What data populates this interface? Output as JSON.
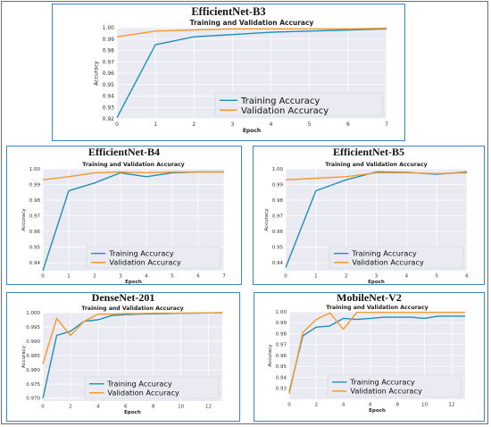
{
  "colors": {
    "training": "#1f8fb4",
    "validation": "#f59a2c",
    "panel_border": "#3b86c6",
    "plot_bg": "#eaeaf2",
    "grid": "#ffffff"
  },
  "panels": [
    {
      "model_label": "EfficientNet-B3"
    },
    {
      "model_label": "EfficientNet-B4"
    },
    {
      "model_label": "EfficientNet-B5"
    },
    {
      "model_label": "DenseNet-201"
    },
    {
      "model_label": "MobileNet-V2"
    }
  ],
  "chart_data": [
    {
      "type": "line",
      "title": "Training and Validation Accuracy",
      "xlabel": "Epoch",
      "ylabel": "Accuracy",
      "xlim": [
        0,
        7
      ],
      "ylim": [
        0.92,
        1.0
      ],
      "xticks": [
        0,
        1,
        2,
        3,
        4,
        5,
        6,
        7
      ],
      "yticks": [
        0.92,
        0.93,
        0.94,
        0.95,
        0.96,
        0.97,
        0.98,
        0.99,
        1.0
      ],
      "ytick_labels": [
        "0.92",
        "0.93",
        "0.94",
        "0.95",
        "0.96",
        "0.97",
        "0.98",
        "0.99",
        "1.00"
      ],
      "legend_position": "lower-right",
      "grid": true,
      "series": [
        {
          "name": "Training Accuracy",
          "x": [
            0,
            1,
            2,
            3,
            4,
            5,
            6,
            7
          ],
          "y": [
            0.921,
            0.985,
            0.992,
            0.994,
            0.996,
            0.997,
            0.998,
            0.999
          ]
        },
        {
          "name": "Validation Accuracy",
          "x": [
            0,
            1,
            2,
            3,
            4,
            5,
            6,
            7
          ],
          "y": [
            0.992,
            0.997,
            0.998,
            0.999,
            0.999,
            0.999,
            0.999,
            0.9995
          ]
        }
      ]
    },
    {
      "type": "line",
      "title": "Training and Validation Accuracy",
      "xlabel": "Epoch",
      "ylabel": "Accuracy",
      "xlim": [
        0,
        7
      ],
      "ylim": [
        0.935,
        1.0
      ],
      "xticks": [
        0,
        1,
        2,
        3,
        4,
        5,
        6,
        7
      ],
      "yticks": [
        0.94,
        0.95,
        0.96,
        0.97,
        0.98,
        0.99,
        1.0
      ],
      "ytick_labels": [
        "0.94",
        "0.95",
        "0.96",
        "0.97",
        "0.98",
        "0.99",
        "1.00"
      ],
      "legend_position": "lower-right",
      "grid": true,
      "series": [
        {
          "name": "Training Accuracy",
          "x": [
            0,
            1,
            2,
            3,
            4,
            5,
            6,
            7
          ],
          "y": [
            0.935,
            0.986,
            0.991,
            0.9975,
            0.995,
            0.9975,
            0.998,
            0.998
          ]
        },
        {
          "name": "Validation Accuracy",
          "x": [
            0,
            1,
            2,
            3,
            4,
            5,
            6,
            7
          ],
          "y": [
            0.993,
            0.995,
            0.9975,
            0.998,
            0.9975,
            0.998,
            0.998,
            0.998
          ]
        }
      ]
    },
    {
      "type": "line",
      "title": "Training and Validation Accuracy",
      "xlabel": "Epoch",
      "ylabel": "Accuracy",
      "xlim": [
        0,
        6
      ],
      "ylim": [
        0.935,
        1.0
      ],
      "xticks": [
        0,
        1,
        2,
        3,
        4,
        5,
        6
      ],
      "yticks": [
        0.94,
        0.95,
        0.96,
        0.97,
        0.98,
        0.99,
        1.0
      ],
      "ytick_labels": [
        "0.94",
        "0.95",
        "0.96",
        "0.97",
        "0.98",
        "0.99",
        "1.00"
      ],
      "legend_position": "lower-right",
      "grid": true,
      "series": [
        {
          "name": "Training Accuracy",
          "x": [
            0,
            1,
            2,
            3,
            4,
            5,
            6
          ],
          "y": [
            0.937,
            0.986,
            0.993,
            0.998,
            0.9978,
            0.9965,
            0.998
          ]
        },
        {
          "name": "Validation Accuracy",
          "x": [
            0,
            1,
            2,
            3,
            4,
            5,
            6
          ],
          "y": [
            0.993,
            0.994,
            0.995,
            0.9975,
            0.9975,
            0.997,
            0.9975
          ]
        }
      ]
    },
    {
      "type": "line",
      "title": "Training and Validation Accuracy",
      "xlabel": "Epoch",
      "ylabel": "Accuracy",
      "xlim": [
        0,
        13
      ],
      "ylim": [
        0.969,
        1.0
      ],
      "xticks": [
        0,
        2,
        4,
        6,
        8,
        10,
        12
      ],
      "yticks": [
        0.97,
        0.975,
        0.98,
        0.985,
        0.99,
        0.995,
        1.0
      ],
      "ytick_labels": [
        "0.970",
        "0.975",
        "0.980",
        "0.985",
        "0.990",
        "0.995",
        "1.000"
      ],
      "legend_position": "lower-right",
      "grid": true,
      "series": [
        {
          "name": "Training Accuracy",
          "x": [
            0,
            1,
            2,
            3,
            4,
            5,
            6,
            7,
            8,
            9,
            10,
            11,
            12,
            13
          ],
          "y": [
            0.97,
            0.992,
            0.9935,
            0.997,
            0.9975,
            0.999,
            0.9993,
            0.9995,
            0.9996,
            0.9997,
            0.9998,
            0.9998,
            0.9999,
            1.0
          ]
        },
        {
          "name": "Validation Accuracy",
          "x": [
            0,
            1,
            2,
            3,
            4,
            5,
            6,
            7,
            8,
            9,
            10,
            11,
            12,
            13
          ],
          "y": [
            0.982,
            0.998,
            0.992,
            0.997,
            0.9995,
            0.9995,
            0.9997,
            0.9997,
            0.9998,
            0.9998,
            0.9998,
            0.9999,
            0.9999,
            1.0
          ]
        }
      ]
    },
    {
      "type": "line",
      "title": "Training and Validation Accuracy",
      "xlabel": "Epoch",
      "ylabel": "Accuracy",
      "xlim": [
        0,
        13
      ],
      "ylim": [
        0.92,
        1.0
      ],
      "xticks": [
        0,
        2,
        4,
        6,
        8,
        10,
        12
      ],
      "yticks": [
        0.93,
        0.94,
        0.95,
        0.96,
        0.97,
        0.98,
        0.99,
        1.0
      ],
      "ytick_labels": [
        "0.93",
        "0.94",
        "0.95",
        "0.96",
        "0.97",
        "0.98",
        "0.99",
        "1.00"
      ],
      "legend_position": "lower-right",
      "grid": true,
      "series": [
        {
          "name": "Training Accuracy",
          "x": [
            0,
            1,
            2,
            3,
            4,
            5,
            6,
            7,
            8,
            9,
            10,
            11,
            12,
            13
          ],
          "y": [
            0.927,
            0.978,
            0.986,
            0.987,
            0.994,
            0.993,
            0.994,
            0.995,
            0.995,
            0.995,
            0.994,
            0.996,
            0.996,
            0.996
          ]
        },
        {
          "name": "Validation Accuracy",
          "x": [
            0,
            1,
            2,
            3,
            4,
            5,
            6,
            7,
            8,
            9,
            10,
            11,
            12,
            13
          ],
          "y": [
            0.925,
            0.981,
            0.993,
            0.999,
            0.984,
            0.9995,
            0.9995,
            0.9995,
            0.9995,
            0.9995,
            0.9995,
            0.9995,
            0.9995,
            0.9995
          ]
        }
      ]
    }
  ]
}
